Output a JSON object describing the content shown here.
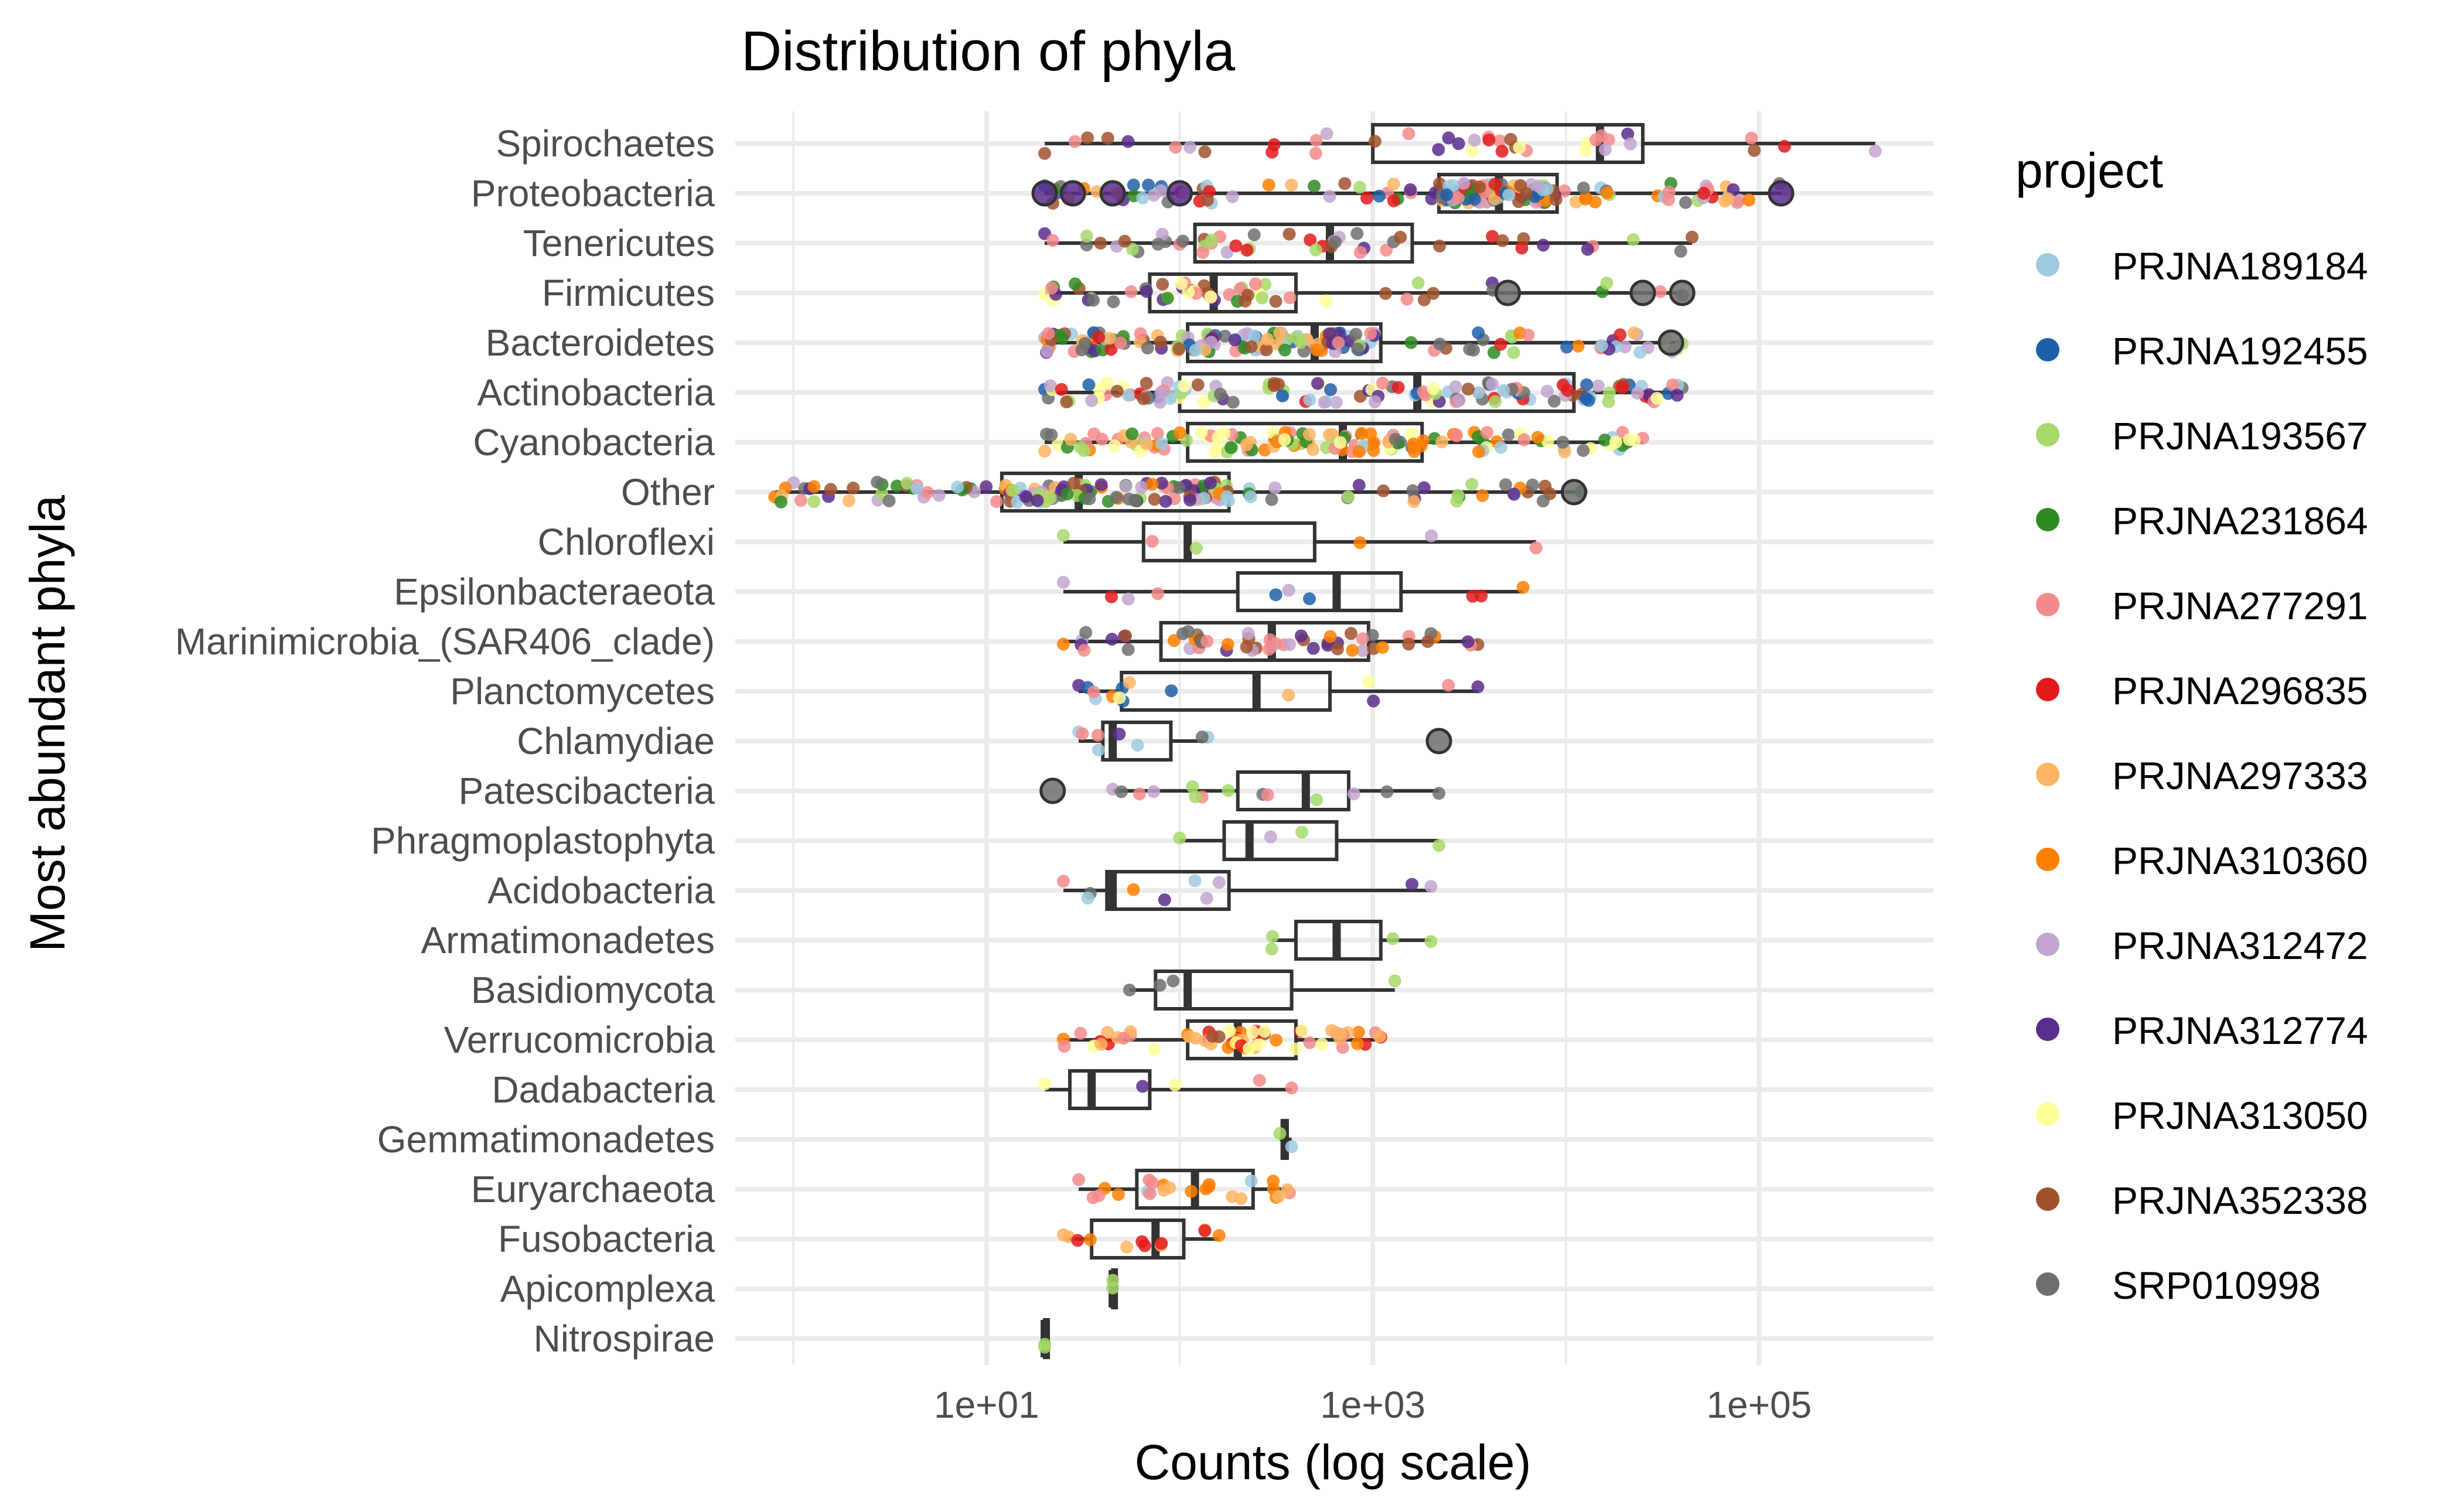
{
  "chart_data": {
    "type": "box",
    "title": "Distribution of phyla",
    "xlabel": "Counts (log scale)",
    "ylabel": "Most abundant phyla",
    "x_scale": "log10",
    "xlim": [
      0.5,
      800000
    ],
    "x_ticks": [
      {
        "value": 10,
        "label": "1e+01"
      },
      {
        "value": 1000,
        "label": "1e+03"
      },
      {
        "value": 100000,
        "label": "1e+05"
      }
    ],
    "grid": true,
    "legend": {
      "title": "project",
      "position": "right",
      "entries": [
        {
          "name": "PRJNA189184",
          "color": "#9ecae1"
        },
        {
          "name": "PRJNA192455",
          "color": "#1f5fa8"
        },
        {
          "name": "PRJNA193567",
          "color": "#a6d96a"
        },
        {
          "name": "PRJNA231864",
          "color": "#2e8b23"
        },
        {
          "name": "PRJNA277291",
          "color": "#f4898b"
        },
        {
          "name": "PRJNA296835",
          "color": "#e31a1c"
        },
        {
          "name": "PRJNA297333",
          "color": "#fdb462"
        },
        {
          "name": "PRJNA310360",
          "color": "#ff7f00"
        },
        {
          "name": "PRJNA312472",
          "color": "#c2a5cf"
        },
        {
          "name": "PRJNA312774",
          "color": "#5a2d8c"
        },
        {
          "name": "PRJNA313050",
          "color": "#ffff99"
        },
        {
          "name": "PRJNA352338",
          "color": "#a0522d"
        },
        {
          "name": "SRP010998",
          "color": "#6e6e6e"
        }
      ]
    },
    "categories": [
      "Spirochaetes",
      "Proteobacteria",
      "Tenericutes",
      "Firmicutes",
      "Bacteroidetes",
      "Actinobacteria",
      "Cyanobacteria",
      "Other",
      "Chloroflexi",
      "Epsilonbacteraeota",
      "Marinimicrobia_(SAR406_clade)",
      "Planctomycetes",
      "Chlamydiae",
      "Patescibacteria",
      "Phragmoplastophyta",
      "Acidobacteria",
      "Armatimonadetes",
      "Basidiomycota",
      "Verrucomicrobia",
      "Dadabacteria",
      "Gemmatimonadetes",
      "Euryarchaeota",
      "Fusobacteria",
      "Apicomplexa",
      "Nitrospirae"
    ],
    "boxes": [
      {
        "q1": 1000,
        "median": 15000,
        "q3": 25000,
        "min": 20,
        "max": 400000,
        "n": 40,
        "projects": [
          5,
          8,
          9,
          11,
          4,
          10
        ]
      },
      {
        "q1": 2200,
        "median": 4500,
        "q3": 9000,
        "min": 20,
        "max": 140000,
        "n": 160,
        "projects": [
          0,
          1,
          2,
          3,
          4,
          5,
          6,
          7,
          8,
          9,
          11,
          12
        ]
      },
      {
        "q1": 120,
        "median": 600,
        "q3": 1600,
        "min": 20,
        "max": 45000,
        "n": 50,
        "projects": [
          9,
          4,
          5,
          11,
          12,
          8,
          2
        ]
      },
      {
        "q1": 70,
        "median": 150,
        "q3": 400,
        "min": 20,
        "max": 40000,
        "n": 55,
        "projects": [
          11,
          9,
          3,
          10,
          2,
          12,
          4
        ]
      },
      {
        "q1": 110,
        "median": 500,
        "q3": 1100,
        "min": 20,
        "max": 40000,
        "n": 170,
        "projects": [
          0,
          1,
          2,
          3,
          4,
          5,
          6,
          7,
          8,
          9,
          11,
          12
        ]
      },
      {
        "q1": 100,
        "median": 1700,
        "q3": 11000,
        "min": 20,
        "max": 40000,
        "n": 130,
        "projects": [
          0,
          1,
          2,
          4,
          5,
          8,
          9,
          10,
          11,
          12
        ]
      },
      {
        "q1": 110,
        "median": 700,
        "q3": 1800,
        "min": 20,
        "max": 25000,
        "n": 140,
        "projects": [
          0,
          2,
          3,
          6,
          7,
          10,
          12,
          4
        ]
      },
      {
        "q1": 12,
        "median": 30,
        "q3": 180,
        "min": 0.8,
        "max": 12000,
        "n": 150,
        "projects": [
          4,
          9,
          12,
          8,
          7,
          2,
          11,
          6,
          0,
          3
        ]
      },
      {
        "q1": 65,
        "median": 110,
        "q3": 500,
        "min": 25,
        "max": 7000,
        "n": 6,
        "projects": [
          7,
          8,
          4,
          2
        ]
      },
      {
        "q1": 200,
        "median": 650,
        "q3": 1400,
        "min": 25,
        "max": 6000,
        "n": 10,
        "projects": [
          0,
          1,
          5,
          8,
          4,
          7
        ]
      },
      {
        "q1": 80,
        "median": 300,
        "q3": 950,
        "min": 25,
        "max": 3500,
        "n": 55,
        "projects": [
          11,
          4,
          7,
          12,
          9,
          8
        ]
      },
      {
        "q1": 50,
        "median": 250,
        "q3": 600,
        "min": 30,
        "max": 3500,
        "n": 15,
        "projects": [
          0,
          1,
          7,
          6,
          9,
          10,
          4
        ]
      },
      {
        "q1": 40,
        "median": 45,
        "q3": 90,
        "min": 30,
        "max": 140,
        "n": 8,
        "projects": [
          9,
          4,
          12,
          0
        ]
      },
      {
        "q1": 200,
        "median": 450,
        "q3": 750,
        "min": 45,
        "max": 2200,
        "n": 14,
        "projects": [
          8,
          4,
          12,
          2
        ]
      },
      {
        "q1": 170,
        "median": 230,
        "q3": 650,
        "min": 100,
        "max": 2200,
        "n": 4,
        "projects": [
          2,
          8
        ]
      },
      {
        "q1": 42,
        "median": 45,
        "q3": 180,
        "min": 25,
        "max": 2000,
        "n": 10,
        "projects": [
          9,
          4,
          7,
          0,
          12,
          8
        ]
      },
      {
        "q1": 400,
        "median": 650,
        "q3": 1100,
        "min": 300,
        "max": 2000,
        "n": 4,
        "projects": [
          2
        ]
      },
      {
        "q1": 75,
        "median": 110,
        "q3": 380,
        "min": 55,
        "max": 1300,
        "n": 4,
        "projects": [
          2,
          12
        ]
      },
      {
        "q1": 110,
        "median": 200,
        "q3": 400,
        "min": 25,
        "max": 1100,
        "n": 60,
        "projects": [
          7,
          6,
          10,
          11,
          4,
          5
        ]
      },
      {
        "q1": 27,
        "median": 35,
        "q3": 70,
        "min": 20,
        "max": 380,
        "n": 5,
        "projects": [
          9,
          4,
          10
        ]
      },
      {
        "q1": 340,
        "median": 350,
        "q3": 360,
        "min": 330,
        "max": 380,
        "n": 2,
        "projects": [
          0,
          2
        ]
      },
      {
        "q1": 60,
        "median": 120,
        "q3": 240,
        "min": 30,
        "max": 370,
        "n": 25,
        "projects": [
          7,
          6,
          4,
          0
        ]
      },
      {
        "q1": 35,
        "median": 75,
        "q3": 105,
        "min": 25,
        "max": 160,
        "n": 12,
        "projects": [
          7,
          6,
          4,
          5
        ]
      },
      {
        "q1": 45,
        "median": 45,
        "q3": 45,
        "min": 45,
        "max": 45,
        "n": 2,
        "projects": [
          2
        ]
      },
      {
        "q1": 20,
        "median": 20,
        "q3": 20,
        "min": 20,
        "max": 20,
        "n": 2,
        "projects": [
          2
        ]
      }
    ],
    "outliers": [
      {
        "category": "Proteobacteria",
        "values": [
          20,
          28,
          45,
          100,
          130000
        ],
        "project": 9
      },
      {
        "category": "Firmicutes",
        "values": [
          5000,
          25000,
          40000
        ],
        "project": 12
      },
      {
        "category": "Bacteroidetes",
        "values": [
          35000
        ],
        "project": 12
      },
      {
        "category": "Other",
        "values": [
          11000
        ],
        "project": 12
      },
      {
        "category": "Chlamydiae",
        "values": [
          2200
        ],
        "project": 12
      },
      {
        "category": "Patescibacteria",
        "values": [
          22
        ],
        "project": 12
      }
    ]
  }
}
